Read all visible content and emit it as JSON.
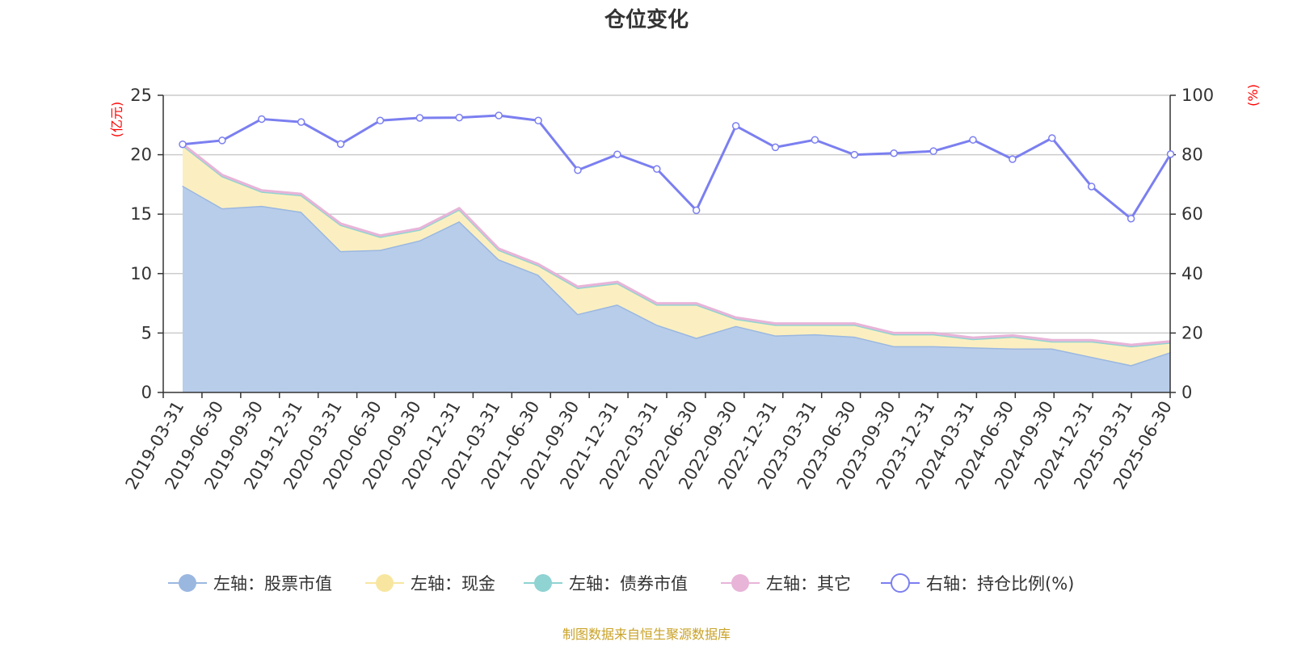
{
  "chart_data": {
    "type": "area",
    "title": "仓位变化",
    "left_axis": {
      "unit": "(亿元)",
      "ylim": [
        0,
        25
      ],
      "ticks": [
        0,
        5,
        10,
        15,
        20,
        25
      ]
    },
    "right_axis": {
      "unit": "(%)",
      "ylim": [
        0,
        100
      ],
      "ticks": [
        0,
        20,
        40,
        60,
        80,
        100
      ]
    },
    "grid": true,
    "legend_position": "bottom",
    "categories": [
      "2019-03-31",
      "2019-06-30",
      "2019-09-30",
      "2019-12-31",
      "2020-03-31",
      "2020-06-30",
      "2020-09-30",
      "2020-12-31",
      "2021-03-31",
      "2021-06-30",
      "2021-09-30",
      "2021-12-31",
      "2022-03-31",
      "2022-06-30",
      "2022-09-30",
      "2022-12-31",
      "2023-03-31",
      "2023-06-30",
      "2023-09-30",
      "2023-12-31",
      "2024-03-31",
      "2024-06-30",
      "2024-09-30",
      "2024-12-31",
      "2025-03-31",
      "2025-06-30"
    ],
    "series": [
      {
        "name": "左轴：股票市值",
        "axis": "left",
        "kind": "stacked-area",
        "color": "#9ab7e0",
        "fill": "#b8cdea",
        "values": [
          17.4,
          15.5,
          15.7,
          15.2,
          11.9,
          12.0,
          12.8,
          14.4,
          11.2,
          9.9,
          6.6,
          7.4,
          5.7,
          4.6,
          5.6,
          4.8,
          4.9,
          4.7,
          3.9,
          3.9,
          3.8,
          3.7,
          3.7,
          3.0,
          2.3,
          3.4
        ]
      },
      {
        "name": "左轴：现金",
        "axis": "left",
        "kind": "stacked-area",
        "color": "#f8e6a0",
        "fill": "#fbefc1",
        "values": [
          3.4,
          2.7,
          1.2,
          1.4,
          2.2,
          1.1,
          0.9,
          1.0,
          0.8,
          0.8,
          2.2,
          1.8,
          1.7,
          2.8,
          0.6,
          0.9,
          0.8,
          1.0,
          1.0,
          1.0,
          0.7,
          1.0,
          0.6,
          1.3,
          1.6,
          0.8
        ]
      },
      {
        "name": "左轴：债券市值",
        "axis": "left",
        "kind": "stacked-area",
        "color": "#8fd3d3",
        "fill": "#a8dede",
        "values": [
          0,
          0,
          0,
          0,
          0,
          0,
          0,
          0,
          0,
          0,
          0,
          0,
          0,
          0,
          0,
          0,
          0,
          0,
          0,
          0,
          0,
          0,
          0,
          0,
          0,
          0
        ]
      },
      {
        "name": "左轴：其它",
        "axis": "left",
        "kind": "stacked-area",
        "color": "#e8b4d8",
        "fill": "#f2d2e8",
        "values": [
          0.1,
          0.1,
          0.1,
          0.1,
          0.1,
          0.1,
          0.1,
          0.1,
          0.1,
          0.1,
          0.1,
          0.1,
          0.1,
          0.1,
          0.1,
          0.1,
          0.1,
          0.1,
          0.1,
          0.1,
          0.1,
          0.1,
          0.1,
          0.1,
          0.1,
          0.1
        ]
      },
      {
        "name": "右轴：持仓比例(%)",
        "axis": "right",
        "kind": "line",
        "color": "#7b7ff0",
        "values": [
          83.5,
          84.8,
          92.0,
          91.0,
          83.6,
          91.5,
          92.4,
          92.5,
          93.2,
          91.5,
          74.8,
          80.1,
          75.2,
          61.3,
          89.7,
          82.5,
          85.0,
          80.0,
          80.5,
          81.2,
          85.0,
          78.5,
          85.6,
          69.3,
          58.5,
          80.2
        ]
      }
    ],
    "source_note": "制图数据来自恒生聚源数据库"
  }
}
